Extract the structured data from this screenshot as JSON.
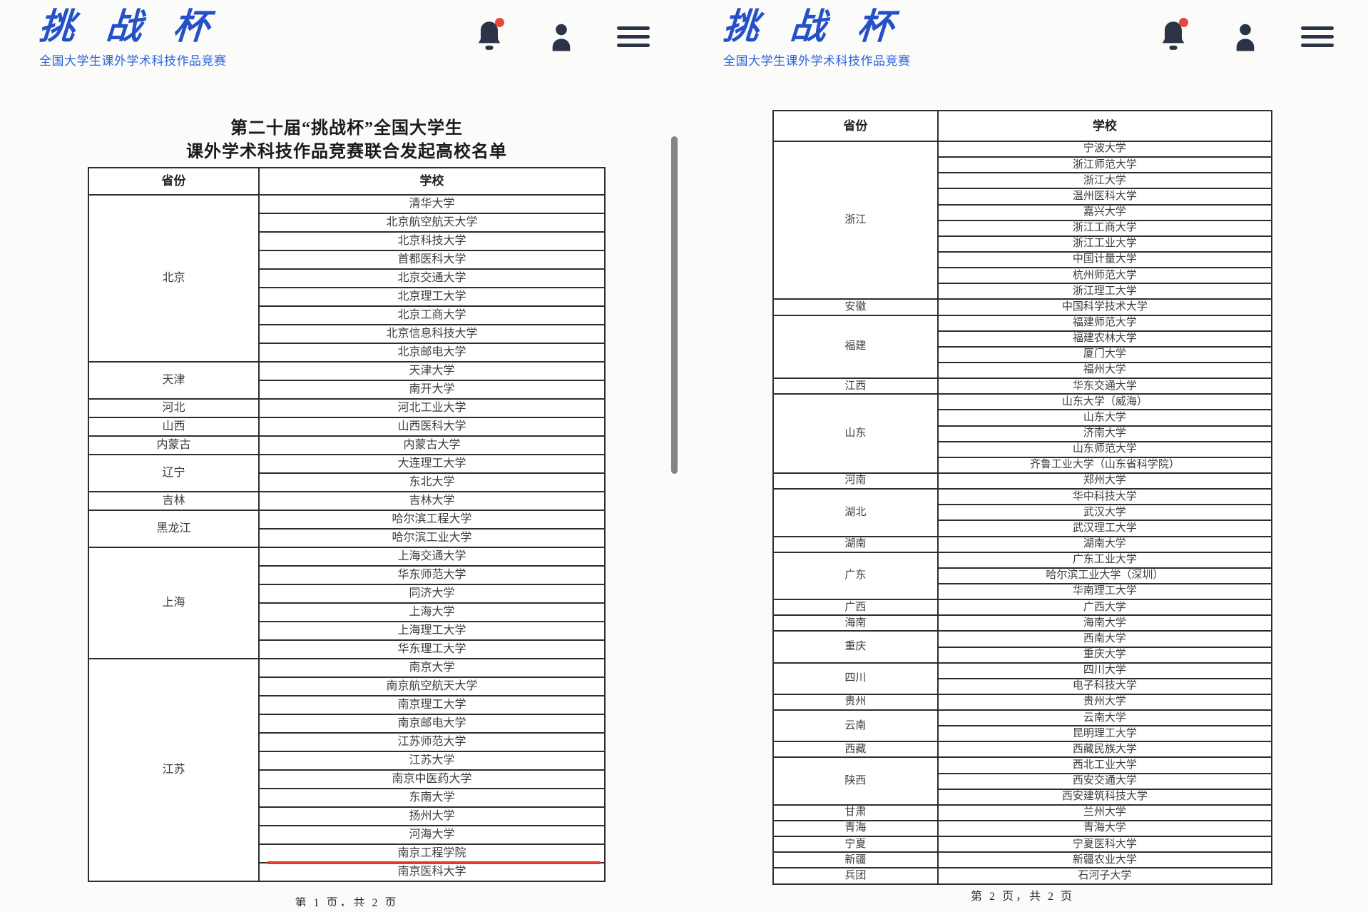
{
  "header": {
    "logo_text": "挑战杯",
    "logo_subtitle": "全国大学生课外学术科技作品竞赛"
  },
  "colors": {
    "brand_blue": "#2551c8",
    "subtitle_blue": "#2d66d8",
    "icon_navy": "#2b3446",
    "notification_red": "#e8473f",
    "highlight_red": "#e6392c",
    "table_border": "#2d2d2d"
  },
  "columns": {
    "province": "省份",
    "school": "学校"
  },
  "page1": {
    "title_line1": "第二十届“挑战杯”全国大学生",
    "title_line2": "课外学术科技作品竞赛联合发起高校名单",
    "footer": "第 1 页，共 2 页",
    "groups": [
      {
        "province": "北京",
        "schools": [
          "清华大学",
          "北京航空航天大学",
          "北京科技大学",
          "首都医科大学",
          "北京交通大学",
          "北京理工大学",
          "北京工商大学",
          "北京信息科技大学",
          "北京邮电大学"
        ]
      },
      {
        "province": "天津",
        "schools": [
          "天津大学",
          "南开大学"
        ]
      },
      {
        "province": "河北",
        "schools": [
          "河北工业大学"
        ]
      },
      {
        "province": "山西",
        "schools": [
          "山西医科大学"
        ]
      },
      {
        "province": "内蒙古",
        "schools": [
          "内蒙古大学"
        ]
      },
      {
        "province": "辽宁",
        "schools": [
          "大连理工大学",
          "东北大学"
        ]
      },
      {
        "province": "吉林",
        "schools": [
          "吉林大学"
        ]
      },
      {
        "province": "黑龙江",
        "schools": [
          "哈尔滨工程大学",
          "哈尔滨工业大学"
        ]
      },
      {
        "province": "上海",
        "schools": [
          "上海交通大学",
          "华东师范大学",
          "同济大学",
          "上海大学",
          "上海理工大学",
          "华东理工大学"
        ]
      },
      {
        "province": "江苏",
        "schools": [
          "南京大学",
          "南京航空航天大学",
          "南京理工大学",
          "南京邮电大学",
          "江苏师范大学",
          "江苏大学",
          "南京中医药大学",
          "东南大学",
          "扬州大学",
          "河海大学",
          "南京工程学院",
          "南京医科大学"
        ],
        "underline_school": "南京工程学院"
      }
    ]
  },
  "page2": {
    "footer": "第 2 页，共 2 页",
    "groups": [
      {
        "province": "浙江",
        "schools": [
          "宁波大学",
          "浙江师范大学",
          "浙江大学",
          "温州医科大学",
          "嘉兴大学",
          "浙江工商大学",
          "浙江工业大学",
          "中国计量大学",
          "杭州师范大学",
          "浙江理工大学"
        ]
      },
      {
        "province": "安徽",
        "schools": [
          "中国科学技术大学"
        ]
      },
      {
        "province": "福建",
        "schools": [
          "福建师范大学",
          "福建农林大学",
          "厦门大学",
          "福州大学"
        ]
      },
      {
        "province": "江西",
        "schools": [
          "华东交通大学"
        ]
      },
      {
        "province": "山东",
        "schools": [
          "山东大学（威海）",
          "山东大学",
          "济南大学",
          "山东师范大学",
          "齐鲁工业大学（山东省科学院）"
        ]
      },
      {
        "province": "河南",
        "schools": [
          "郑州大学"
        ]
      },
      {
        "province": "湖北",
        "schools": [
          "华中科技大学",
          "武汉大学",
          "武汉理工大学"
        ]
      },
      {
        "province": "湖南",
        "schools": [
          "湖南大学"
        ]
      },
      {
        "province": "广东",
        "schools": [
          "广东工业大学",
          "哈尔滨工业大学（深圳）",
          "华南理工大学"
        ]
      },
      {
        "province": "广西",
        "schools": [
          "广西大学"
        ]
      },
      {
        "province": "海南",
        "schools": [
          "海南大学"
        ]
      },
      {
        "province": "重庆",
        "schools": [
          "西南大学",
          "重庆大学"
        ]
      },
      {
        "province": "四川",
        "schools": [
          "四川大学",
          "电子科技大学"
        ]
      },
      {
        "province": "贵州",
        "schools": [
          "贵州大学"
        ]
      },
      {
        "province": "云南",
        "schools": [
          "云南大学",
          "昆明理工大学"
        ]
      },
      {
        "province": "西藏",
        "schools": [
          "西藏民族大学"
        ]
      },
      {
        "province": "陕西",
        "schools": [
          "西北工业大学",
          "西安交通大学",
          "西安建筑科技大学"
        ]
      },
      {
        "province": "甘肃",
        "schools": [
          "兰州大学"
        ]
      },
      {
        "province": "青海",
        "schools": [
          "青海大学"
        ]
      },
      {
        "province": "宁夏",
        "schools": [
          "宁夏医科大学"
        ]
      },
      {
        "province": "新疆",
        "schools": [
          "新疆农业大学"
        ]
      },
      {
        "province": "兵团",
        "schools": [
          "石河子大学"
        ]
      }
    ]
  }
}
